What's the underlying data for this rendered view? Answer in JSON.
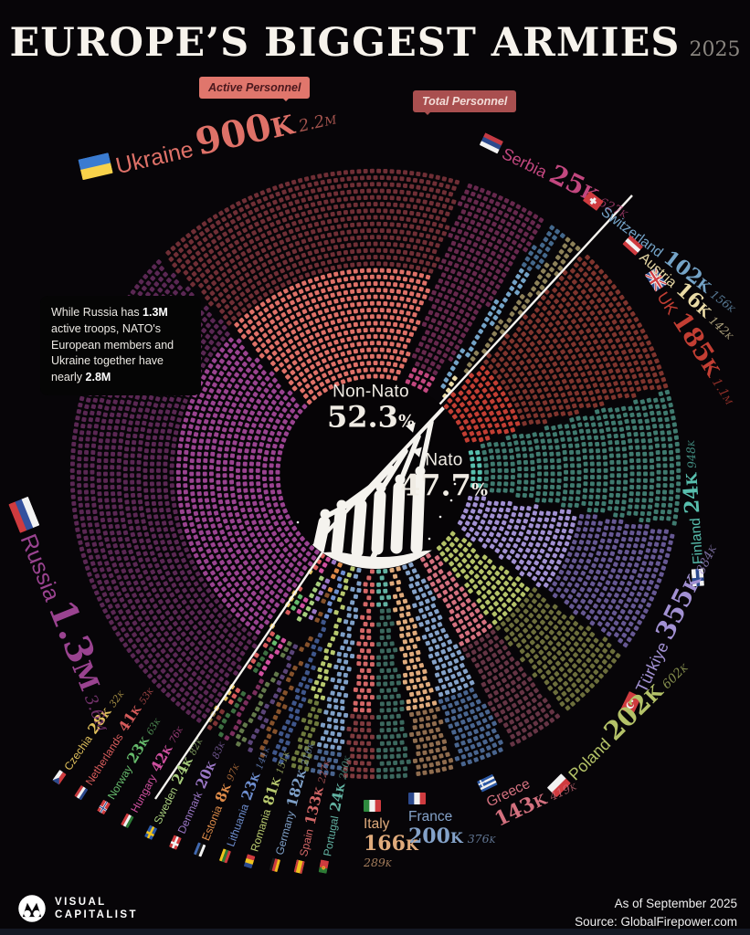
{
  "title": {
    "main": "EUROPE’S BIGGEST ARMIES",
    "year": "2025"
  },
  "callouts": {
    "active": "Active Personnel",
    "total": "Total Personnel"
  },
  "annotation": {
    "segments": [
      {
        "text": "While Russia has ",
        "bold": false
      },
      {
        "text": "1.3M",
        "bold": true
      },
      {
        "text": " active troops, NATO's European members and Ukraine together have nearly ",
        "bold": false
      },
      {
        "text": "2.8M",
        "bold": true
      }
    ]
  },
  "center": {
    "non_nato_label": "Non-Nato",
    "non_nato_value": "52.3",
    "nato_label": "Nato",
    "nato_value": "47.7",
    "pct_sign": "%"
  },
  "footer": {
    "brand_top": "VISUAL",
    "brand_bottom": "CAPITALIST",
    "as_of": "As of September 2025",
    "source": "Source: GlobalFirepower.com"
  },
  "chart_data": {
    "type": "pie",
    "title": "Europe's biggest armies, 2025 — active vs total military personnel",
    "units": "thousands of personnel",
    "legend_position": "around-wheel",
    "non_nato_share_pct": 52.3,
    "nato_share_pct": 47.7,
    "divider_angle_deg": 42.7,
    "order_clockwise_from_divider": [
      "uk",
      "finland",
      "turkiye",
      "poland",
      "greece",
      "france",
      "italy",
      "portugal",
      "spain",
      "germany",
      "romania",
      "lithuania",
      "estonia",
      "denmark",
      "sweden",
      "hungary",
      "norway",
      "netherlands",
      "czechia",
      "russia",
      "ukraine",
      "serbia",
      "switzerland",
      "austria"
    ],
    "countries": {
      "uk": {
        "name": "UK",
        "group": "nato",
        "active_label": "185K",
        "total_label": "1.1M",
        "active_k": 185,
        "total_k": 1100,
        "bright": "#c23e33",
        "dark": "#7f342d"
      },
      "finland": {
        "name": "Finland",
        "group": "nato",
        "active_label": "24K",
        "total_label": "948K",
        "active_k": 24,
        "total_k": 948,
        "bright": "#58bfae",
        "dark": "#3f7a6f"
      },
      "turkiye": {
        "name": "Türkiye",
        "group": "nato",
        "active_label": "355K",
        "total_label": "884K",
        "active_k": 355,
        "total_k": 884,
        "bright": "#a291d3",
        "dark": "#665893"
      },
      "poland": {
        "name": "Poland",
        "group": "nato",
        "active_label": "202K",
        "total_label": "602K",
        "active_k": 202,
        "total_k": 602,
        "bright": "#b4c268",
        "dark": "#6c6e3b"
      },
      "greece": {
        "name": "Greece",
        "group": "nato",
        "active_label": "143K",
        "total_label": "419K",
        "active_k": 143,
        "total_k": 419,
        "bright": "#d4717f",
        "dark": "#653444"
      },
      "france": {
        "name": "France",
        "group": "nato",
        "active_label": "200K",
        "total_label": "376K",
        "active_k": 200,
        "total_k": 376,
        "bright": "#84a2c9",
        "dark": "#49658f"
      },
      "italy": {
        "name": "Italy",
        "group": "nato",
        "active_label": "166K",
        "total_label": "289K",
        "active_k": 166,
        "total_k": 289,
        "bright": "#e0ab7c",
        "dark": "#8f6c4e"
      },
      "portugal": {
        "name": "Portugal",
        "group": "nato",
        "active_label": "24K",
        "total_label": "260K",
        "active_k": 24,
        "total_k": 260,
        "bright": "#61b1a1",
        "dark": "#3b685e"
      },
      "spain": {
        "name": "Spain",
        "group": "nato",
        "active_label": "133K",
        "total_label": "227K",
        "active_k": 133,
        "total_k": 227,
        "bright": "#d46767",
        "dark": "#7f3a3e"
      },
      "germany": {
        "name": "Germany",
        "group": "nato",
        "active_label": "182K",
        "total_label": "216K",
        "active_k": 182,
        "total_k": 216,
        "bright": "#7fa0c8",
        "dark": "#49648e"
      },
      "romania": {
        "name": "Romania",
        "group": "nato",
        "active_label": "81K",
        "total_label": "151K",
        "active_k": 81,
        "total_k": 151,
        "bright": "#b8c96e",
        "dark": "#6e7a3d"
      },
      "lithuania": {
        "name": "Lithuania",
        "group": "nato",
        "active_label": "23K",
        "total_label": "141K",
        "active_k": 23,
        "total_k": 141,
        "bright": "#6e8ecf",
        "dark": "#3f568b"
      },
      "estonia": {
        "name": "Estonia",
        "group": "nato",
        "active_label": "8K",
        "total_label": "97K",
        "active_k": 8,
        "total_k": 97,
        "bright": "#de8b49",
        "dark": "#85512b"
      },
      "denmark": {
        "name": "Denmark",
        "group": "nato",
        "active_label": "20K",
        "total_label": "83K",
        "active_k": 20,
        "total_k": 83,
        "bright": "#9b77c6",
        "dark": "#5a4478"
      },
      "sweden": {
        "name": "Sweden",
        "group": "nato",
        "active_label": "24K",
        "total_label": "82K",
        "active_k": 24,
        "total_k": 82,
        "bright": "#a7cd7c",
        "dark": "#63794a"
      },
      "hungary": {
        "name": "Hungary",
        "group": "nato",
        "active_label": "42K",
        "total_label": "76K",
        "active_k": 42,
        "total_k": 76,
        "bright": "#d050a0",
        "dark": "#7a2e5d"
      },
      "norway": {
        "name": "Norway",
        "group": "nato",
        "active_label": "23K",
        "total_label": "63K",
        "active_k": 23,
        "total_k": 63,
        "bright": "#66bb6c",
        "dark": "#3c6e40"
      },
      "netherlands": {
        "name": "Netherlands",
        "group": "nato",
        "active_label": "41K",
        "total_label": "53K",
        "active_k": 41,
        "total_k": 53,
        "bright": "#d65b5b",
        "dark": "#7e3334"
      },
      "czechia": {
        "name": "Czechia",
        "group": "nato",
        "active_label": "28K",
        "total_label": "32K",
        "active_k": 28,
        "total_k": 32,
        "bright": "#e0c05c",
        "dark": "#857137"
      },
      "russia": {
        "name": "Russia",
        "group": "non-nato",
        "active_label": "1.3M",
        "total_label": "3.6M",
        "active_k": 1300,
        "total_k": 3600,
        "bright": "#9a4390",
        "dark": "#5a2753"
      },
      "ukraine": {
        "name": "Ukraine",
        "group": "non-nato",
        "active_label": "900K",
        "total_label": "2.2M",
        "active_k": 900,
        "total_k": 2200,
        "bright": "#df7168",
        "dark": "#6f2e35"
      },
      "serbia": {
        "name": "Serbia",
        "group": "non-nato",
        "active_label": "25K",
        "total_label": "627K",
        "active_k": 25,
        "total_k": 627,
        "bright": "#c2477f",
        "dark": "#67284d"
      },
      "switzerland": {
        "name": "Switzerland",
        "group": "non-nato",
        "active_label": "102K",
        "total_label": "156K",
        "active_k": 102,
        "total_k": 156,
        "bright": "#74a3c7",
        "dark": "#44688c"
      },
      "austria": {
        "name": "Austria",
        "group": "non-nato",
        "active_label": "16K",
        "total_label": "142K",
        "active_k": 16,
        "total_k": 142,
        "bright": "#e9daa6",
        "dark": "#8d8159"
      }
    }
  }
}
